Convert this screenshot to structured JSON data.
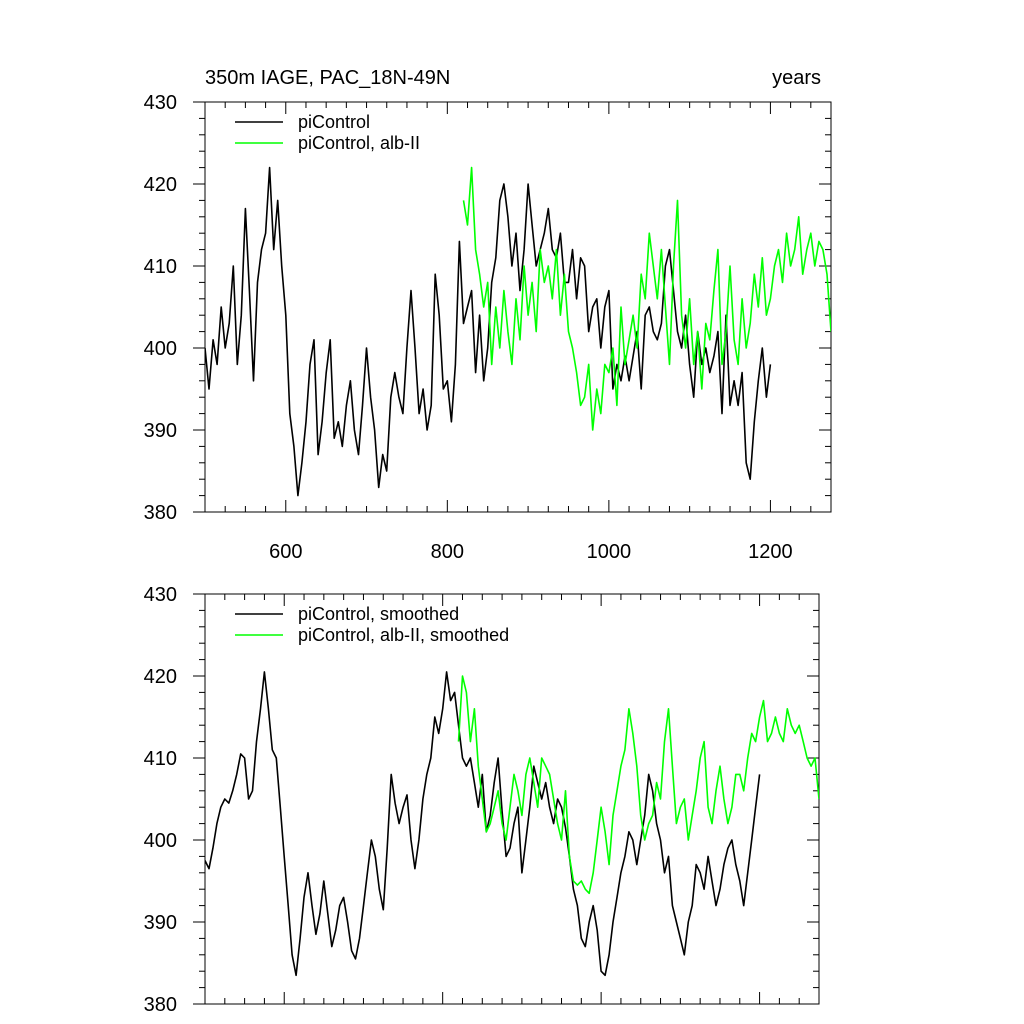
{
  "chart_data": [
    {
      "type": "line",
      "title_left": "350m IAGE, PAC_18N-49N",
      "title_right": "years",
      "xlim": [
        500,
        1275
      ],
      "ylim": [
        380,
        430
      ],
      "x_ticks": [
        600,
        800,
        1000,
        1200
      ],
      "x_tick_labels": [
        "600",
        "800",
        "1000",
        "1200"
      ],
      "y_ticks": [
        380,
        390,
        400,
        410,
        420,
        430
      ],
      "y_tick_labels": [
        "380",
        "390",
        "400",
        "410",
        "420",
        "430"
      ],
      "legend": "top-left",
      "grid": false,
      "series": [
        {
          "name": "piControl",
          "color": "#000000",
          "x": [
            500,
            505,
            510,
            515,
            520,
            525,
            530,
            535,
            540,
            545,
            550,
            555,
            560,
            565,
            570,
            575,
            580,
            585,
            590,
            595,
            600,
            605,
            610,
            615,
            620,
            625,
            630,
            635,
            640,
            645,
            650,
            655,
            660,
            665,
            670,
            675,
            680,
            685,
            690,
            695,
            700,
            705,
            710,
            715,
            720,
            725,
            730,
            735,
            740,
            745,
            750,
            755,
            760,
            765,
            770,
            775,
            780,
            785,
            790,
            795,
            800,
            805,
            810,
            815,
            820,
            825,
            830,
            835,
            840,
            845,
            850,
            855,
            860,
            865,
            870,
            875,
            880,
            885,
            890,
            895,
            900,
            905,
            910,
            915,
            920,
            925,
            930,
            935,
            940,
            945,
            950,
            955,
            960,
            965,
            970,
            975,
            980,
            985,
            990,
            995,
            1000,
            1005,
            1010,
            1015,
            1020,
            1025,
            1030,
            1035,
            1040,
            1045,
            1050,
            1055,
            1060,
            1065,
            1070,
            1075,
            1080,
            1085,
            1090,
            1095,
            1100,
            1105,
            1110,
            1115,
            1120,
            1125,
            1130,
            1135,
            1140,
            1145,
            1150,
            1155,
            1160,
            1165,
            1170,
            1175,
            1180,
            1185,
            1190,
            1195,
            1200
          ],
          "y": [
            400,
            395,
            401,
            398,
            405,
            400,
            403,
            410,
            398,
            404,
            417,
            407,
            396,
            408,
            412,
            414,
            422,
            412,
            418,
            410,
            404,
            392,
            388,
            382,
            386,
            391,
            398,
            401,
            387,
            391,
            397,
            401,
            389,
            391,
            388,
            393,
            396,
            390,
            387,
            393,
            400,
            394,
            390,
            383,
            387,
            385,
            394,
            397,
            394,
            392,
            400,
            407,
            400,
            392,
            395,
            390,
            393,
            409,
            404,
            395,
            396,
            391,
            398,
            413,
            403,
            405,
            407,
            397,
            404,
            396,
            400,
            408,
            411,
            418,
            420,
            416,
            410,
            414,
            407,
            412,
            420,
            415,
            410,
            412,
            414,
            417,
            412,
            411,
            414,
            408,
            408,
            412,
            406,
            411,
            410,
            402,
            405,
            406,
            400,
            405,
            407,
            395,
            398,
            396,
            399,
            396,
            399,
            402,
            395,
            404,
            405,
            402,
            401,
            403,
            410,
            412,
            407,
            402,
            400,
            404,
            398,
            394,
            402,
            398,
            400,
            397,
            399,
            402,
            392,
            404,
            393,
            396,
            393,
            397,
            386,
            384,
            391,
            396,
            400,
            394,
            398
          ]
        },
        {
          "name": "piControl, alb-II",
          "color": "#00ff00",
          "x": [
            820,
            825,
            830,
            835,
            840,
            845,
            850,
            855,
            860,
            865,
            870,
            875,
            880,
            885,
            890,
            895,
            900,
            905,
            910,
            915,
            920,
            925,
            930,
            935,
            940,
            945,
            950,
            955,
            960,
            965,
            970,
            975,
            980,
            985,
            990,
            995,
            1000,
            1005,
            1010,
            1015,
            1020,
            1025,
            1030,
            1035,
            1040,
            1045,
            1050,
            1055,
            1060,
            1065,
            1070,
            1075,
            1080,
            1085,
            1090,
            1095,
            1100,
            1105,
            1110,
            1115,
            1120,
            1125,
            1130,
            1135,
            1140,
            1145,
            1150,
            1155,
            1160,
            1165,
            1170,
            1175,
            1180,
            1185,
            1190,
            1195,
            1200,
            1205,
            1210,
            1215,
            1220,
            1225,
            1230,
            1235,
            1240,
            1245,
            1250,
            1255,
            1260,
            1265,
            1270,
            1275
          ],
          "y": [
            418,
            415,
            422,
            412,
            409,
            405,
            408,
            398,
            405,
            400,
            407,
            402,
            398,
            406,
            401,
            410,
            404,
            408,
            402,
            412,
            408,
            410,
            406,
            412,
            404,
            409,
            402,
            400,
            397,
            393,
            394,
            398,
            390,
            395,
            392,
            398,
            397,
            400,
            393,
            405,
            398,
            401,
            404,
            400,
            409,
            406,
            414,
            410,
            406,
            412,
            405,
            398,
            410,
            418,
            404,
            400,
            406,
            398,
            402,
            395,
            403,
            401,
            407,
            412,
            398,
            402,
            410,
            401,
            398,
            406,
            400,
            403,
            409,
            405,
            411,
            404,
            406,
            410,
            412,
            408,
            414,
            410,
            412,
            416,
            409,
            412,
            414,
            410,
            413,
            412,
            409,
            402
          ]
        }
      ]
    },
    {
      "type": "line",
      "xlim": [
        500,
        1275
      ],
      "ylim": [
        380,
        430
      ],
      "x_ticks": [
        600,
        800,
        1000,
        1200
      ],
      "y_ticks": [
        380,
        390,
        400,
        410,
        420,
        430
      ],
      "y_tick_labels": [
        "380",
        "390",
        "400",
        "410",
        "420",
        "430"
      ],
      "legend": "top-left",
      "grid": false,
      "series": [
        {
          "name": "piControl, smoothed",
          "color": "#000000",
          "x": [
            500,
            505,
            510,
            515,
            520,
            525,
            530,
            535,
            540,
            545,
            550,
            555,
            560,
            565,
            570,
            575,
            580,
            585,
            590,
            595,
            600,
            605,
            610,
            615,
            620,
            625,
            630,
            635,
            640,
            645,
            650,
            655,
            660,
            665,
            670,
            675,
            680,
            685,
            690,
            695,
            700,
            705,
            710,
            715,
            720,
            725,
            730,
            735,
            740,
            745,
            750,
            755,
            760,
            765,
            770,
            775,
            780,
            785,
            790,
            795,
            800,
            805,
            810,
            815,
            820,
            825,
            830,
            835,
            840,
            845,
            850,
            855,
            860,
            865,
            870,
            875,
            880,
            885,
            890,
            895,
            900,
            905,
            910,
            915,
            920,
            925,
            930,
            935,
            940,
            945,
            950,
            955,
            960,
            965,
            970,
            975,
            980,
            985,
            990,
            995,
            1000,
            1005,
            1010,
            1015,
            1020,
            1025,
            1030,
            1035,
            1040,
            1045,
            1050,
            1055,
            1060,
            1065,
            1070,
            1075,
            1080,
            1085,
            1090,
            1095,
            1100,
            1105,
            1110,
            1115,
            1120,
            1125,
            1130,
            1135,
            1140,
            1145,
            1150,
            1155,
            1160,
            1165,
            1170,
            1175,
            1180,
            1185,
            1190,
            1195,
            1200
          ],
          "y": [
            397.5,
            396.5,
            399,
            402,
            404,
            405,
            404.5,
            406,
            408,
            410.5,
            410,
            405,
            406,
            412,
            416,
            420.5,
            416,
            411,
            410,
            404,
            398,
            392,
            386,
            383.5,
            388,
            393,
            396,
            392,
            388.5,
            391,
            395,
            391,
            387,
            389,
            392,
            393,
            390,
            386.5,
            385.5,
            388,
            392,
            396,
            400,
            398,
            394,
            391.5,
            399,
            408,
            404.5,
            402,
            404,
            405.5,
            400,
            396.5,
            400,
            405,
            408,
            410,
            415,
            413,
            416,
            420.5,
            417,
            418,
            414,
            410,
            409,
            410,
            407,
            404,
            408,
            401,
            403,
            407,
            410,
            403.5,
            398,
            399,
            402,
            404,
            396,
            400,
            404,
            409,
            407,
            405,
            407,
            404,
            402,
            405,
            404,
            401.5,
            398,
            394,
            392,
            388,
            387,
            390,
            392,
            389,
            384,
            383.5,
            386,
            390,
            393,
            396,
            398,
            401,
            400,
            397,
            400,
            403,
            408,
            406,
            402,
            400,
            396,
            398,
            392,
            390,
            388,
            386,
            390,
            392,
            397,
            396,
            394,
            398,
            395,
            392,
            394,
            397,
            399,
            400,
            397,
            395,
            392,
            396,
            400,
            404,
            408
          ]
        },
        {
          "name": "piControl, alb-II, smoothed",
          "color": "#00ff00",
          "x": [
            820,
            825,
            830,
            835,
            840,
            845,
            850,
            855,
            860,
            865,
            870,
            875,
            880,
            885,
            890,
            895,
            900,
            905,
            910,
            915,
            920,
            925,
            930,
            935,
            940,
            945,
            950,
            955,
            960,
            965,
            970,
            975,
            980,
            985,
            990,
            995,
            1000,
            1005,
            1010,
            1015,
            1020,
            1025,
            1030,
            1035,
            1040,
            1045,
            1050,
            1055,
            1060,
            1065,
            1070,
            1075,
            1080,
            1085,
            1090,
            1095,
            1100,
            1105,
            1110,
            1115,
            1120,
            1125,
            1130,
            1135,
            1140,
            1145,
            1150,
            1155,
            1160,
            1165,
            1170,
            1175,
            1180,
            1185,
            1190,
            1195,
            1200,
            1205,
            1210,
            1215,
            1220,
            1225,
            1230,
            1235,
            1240,
            1245,
            1250,
            1255,
            1260,
            1265,
            1270,
            1275
          ],
          "y": [
            412,
            420,
            418,
            412,
            416,
            409,
            405,
            401,
            402,
            404,
            406,
            402,
            400,
            404,
            408,
            406,
            403,
            408,
            410,
            407,
            404,
            410,
            409,
            408,
            405,
            402,
            400,
            406,
            398,
            395,
            394.5,
            395,
            394,
            393.5,
            396,
            400,
            404,
            401,
            397,
            403,
            406,
            409,
            411,
            416,
            413,
            409,
            403,
            400,
            402,
            403,
            407,
            405,
            412,
            416,
            409,
            402,
            404,
            405,
            400,
            403,
            406,
            410,
            412,
            404,
            402,
            406,
            409,
            405,
            402,
            404,
            408,
            408,
            406,
            410,
            413,
            412,
            415,
            417,
            412,
            413,
            415,
            413,
            412,
            416,
            414,
            413,
            414,
            412,
            410,
            409,
            410,
            405
          ]
        }
      ]
    }
  ]
}
